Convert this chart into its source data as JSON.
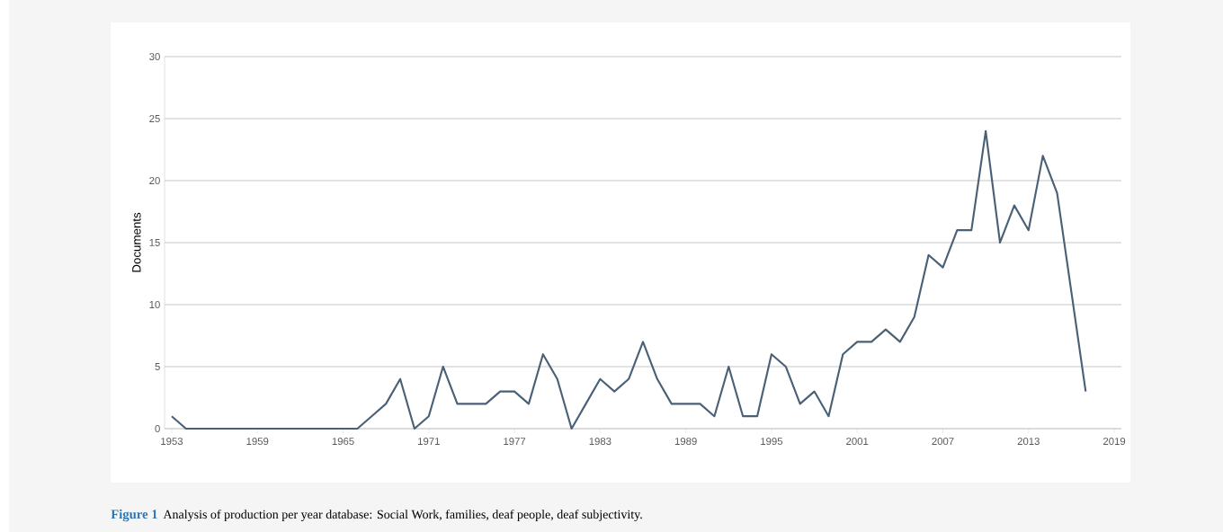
{
  "chart_data": {
    "type": "line",
    "ylabel": "Documents",
    "x": [
      1953,
      1954,
      1955,
      1956,
      1957,
      1958,
      1959,
      1960,
      1961,
      1962,
      1963,
      1964,
      1965,
      1966,
      1967,
      1968,
      1969,
      1970,
      1971,
      1972,
      1973,
      1974,
      1975,
      1976,
      1977,
      1978,
      1979,
      1980,
      1981,
      1982,
      1983,
      1984,
      1985,
      1986,
      1987,
      1988,
      1989,
      1990,
      1991,
      1992,
      1993,
      1994,
      1995,
      1996,
      1997,
      1998,
      1999,
      2000,
      2001,
      2002,
      2003,
      2004,
      2005,
      2006,
      2007,
      2008,
      2009,
      2010,
      2011,
      2012,
      2013,
      2014,
      2015,
      2016,
      2017
    ],
    "series": [
      {
        "color": "#4a6076",
        "values": [
          1,
          0,
          0,
          0,
          0,
          0,
          0,
          0,
          0,
          0,
          0,
          0,
          0,
          0,
          1,
          2,
          4,
          0,
          1,
          5,
          2,
          2,
          2,
          3,
          3,
          2,
          6,
          4,
          0,
          2,
          4,
          3,
          4,
          7,
          4,
          2,
          2,
          2,
          1,
          5,
          1,
          1,
          6,
          5,
          2,
          3,
          1,
          6,
          7,
          7,
          8,
          7,
          9,
          14,
          13,
          16,
          16,
          24,
          15,
          18,
          16,
          22,
          19,
          11,
          3
        ]
      }
    ],
    "xlim": [
      1952.5,
      2019.5
    ],
    "xticks": [
      1953,
      1959,
      1965,
      1971,
      1977,
      1983,
      1989,
      1995,
      2001,
      2007,
      2013,
      2019
    ],
    "ylim": [
      0,
      30
    ],
    "yticks": [
      0,
      5,
      10,
      15,
      20,
      25,
      30
    ],
    "grid": "y",
    "marker": "none",
    "line_style": "solid",
    "annotations": [
      "Figure 1",
      "Analysis of production per year database: Social Work, families, deaf people, deaf subjectivity."
    ]
  }
}
